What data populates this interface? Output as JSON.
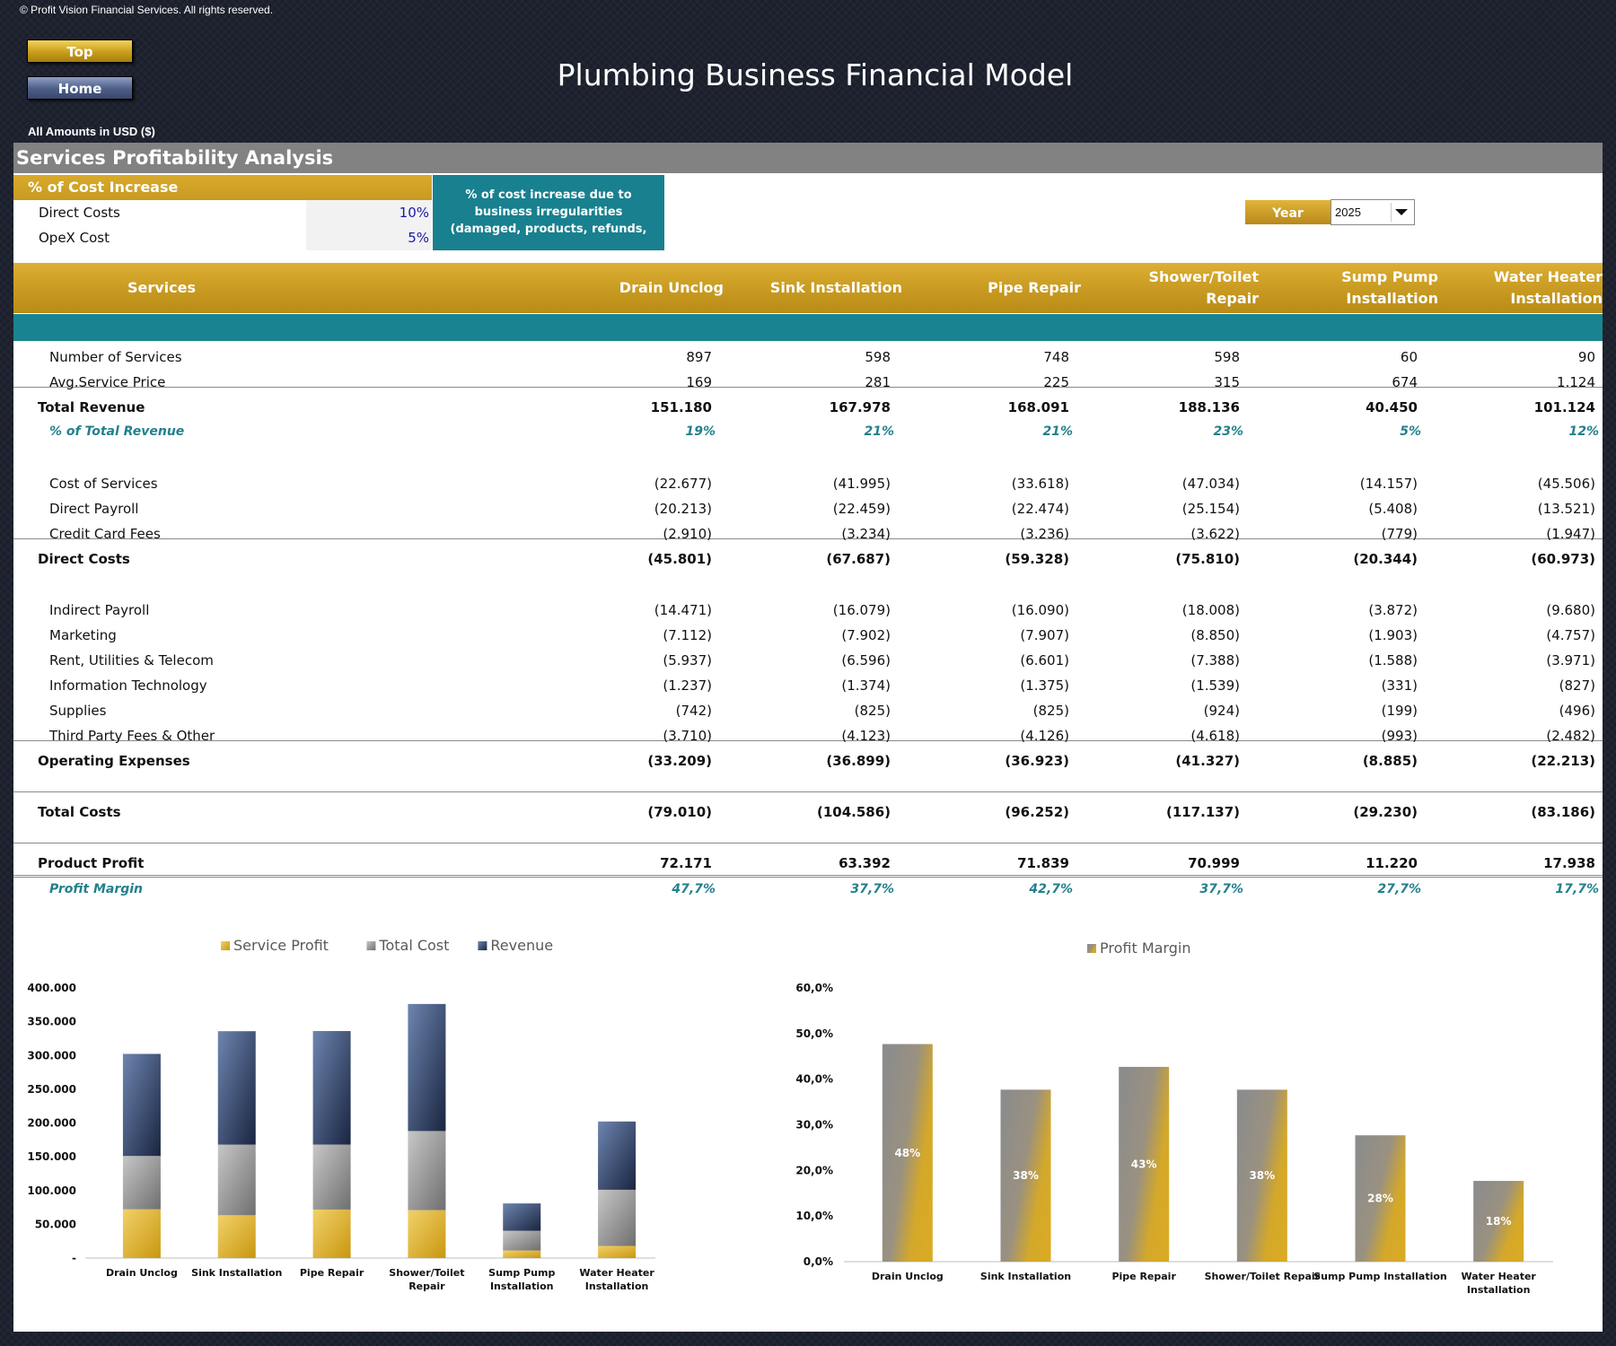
{
  "copyright": "© Profit Vision Financial Services. All rights reserved.",
  "nav": {
    "top_label": "Top",
    "home_label": "Home"
  },
  "title": "Plumbing Business Financial Model",
  "amounts_label": "All Amounts in  USD ($)",
  "section_title": "Services Profitability Analysis",
  "cost_increase": {
    "header": "% of Cost Increase",
    "rows": [
      {
        "label": "Direct Costs",
        "value": "10%"
      },
      {
        "label": "OpeX Cost",
        "value": "5%"
      }
    ],
    "note": "% of cost increase due to business irregularities (damaged, products, refunds,"
  },
  "year": {
    "label": "Year",
    "value": "2025"
  },
  "table": {
    "header_label": "Services",
    "columns": [
      "Drain Unclog",
      "Sink Installation",
      "Pipe Repair",
      "Shower/Toilet Repair",
      "Sump Pump Installation",
      "Water Heater Installation"
    ],
    "column_lines": [
      [
        "Drain Unclog"
      ],
      [
        "Sink Installation"
      ],
      [
        "Pipe Repair"
      ],
      [
        "Shower/Toilet",
        "Repair"
      ],
      [
        "Sump Pump",
        "Installation"
      ],
      [
        "Water Heater",
        "Installation"
      ]
    ],
    "rows": [
      {
        "label": "Number of Services",
        "values": [
          "897",
          "598",
          "748",
          "598",
          "60",
          "90"
        ],
        "style": "normal"
      },
      {
        "label": "Avg.Service Price",
        "values": [
          "169",
          "281",
          "225",
          "315",
          "674",
          "1.124"
        ],
        "style": "normal"
      },
      {
        "label": "Total Revenue",
        "values": [
          "151.180",
          "167.978",
          "168.091",
          "188.136",
          "40.450",
          "101.124"
        ],
        "style": "bold"
      },
      {
        "label": "% of Total Revenue",
        "values": [
          "19%",
          "21%",
          "21%",
          "23%",
          "5%",
          "12%"
        ],
        "style": "pct"
      },
      {
        "label": "Cost of Services",
        "values": [
          "(22.677)",
          "(41.995)",
          "(33.618)",
          "(47.034)",
          "(14.157)",
          "(45.506)"
        ],
        "style": "normal"
      },
      {
        "label": "Direct Payroll",
        "values": [
          "(20.213)",
          "(22.459)",
          "(22.474)",
          "(25.154)",
          "(5.408)",
          "(13.521)"
        ],
        "style": "normal"
      },
      {
        "label": "Credit Card Fees",
        "values": [
          "(2.910)",
          "(3.234)",
          "(3.236)",
          "(3.622)",
          "(779)",
          "(1.947)"
        ],
        "style": "normal"
      },
      {
        "label": "Direct Costs",
        "values": [
          "(45.801)",
          "(67.687)",
          "(59.328)",
          "(75.810)",
          "(20.344)",
          "(60.973)"
        ],
        "style": "bold"
      },
      {
        "label": "Indirect Payroll",
        "values": [
          "(14.471)",
          "(16.079)",
          "(16.090)",
          "(18.008)",
          "(3.872)",
          "(9.680)"
        ],
        "style": "normal"
      },
      {
        "label": "Marketing",
        "values": [
          "(7.112)",
          "(7.902)",
          "(7.907)",
          "(8.850)",
          "(1.903)",
          "(4.757)"
        ],
        "style": "normal"
      },
      {
        "label": "Rent, Utilities & Telecom",
        "values": [
          "(5.937)",
          "(6.596)",
          "(6.601)",
          "(7.388)",
          "(1.588)",
          "(3.971)"
        ],
        "style": "normal"
      },
      {
        "label": "Information Technology",
        "values": [
          "(1.237)",
          "(1.374)",
          "(1.375)",
          "(1.539)",
          "(331)",
          "(827)"
        ],
        "style": "normal"
      },
      {
        "label": "Supplies",
        "values": [
          "(742)",
          "(825)",
          "(825)",
          "(924)",
          "(199)",
          "(496)"
        ],
        "style": "normal"
      },
      {
        "label": "Third Party Fees & Other",
        "values": [
          "(3.710)",
          "(4.123)",
          "(4.126)",
          "(4.618)",
          "(993)",
          "(2.482)"
        ],
        "style": "normal"
      },
      {
        "label": "Operating Expenses",
        "values": [
          "(33.209)",
          "(36.899)",
          "(36.923)",
          "(41.327)",
          "(8.885)",
          "(22.213)"
        ],
        "style": "bold"
      },
      {
        "label": "Total Costs",
        "values": [
          "(79.010)",
          "(104.586)",
          "(96.252)",
          "(117.137)",
          "(29.230)",
          "(83.186)"
        ],
        "style": "bold"
      },
      {
        "label": "Product Profit",
        "values": [
          "72.171",
          "63.392",
          "71.839",
          "70.999",
          "11.220",
          "17.938"
        ],
        "style": "bold"
      },
      {
        "label": "Profit Margin",
        "values": [
          "47,7%",
          "37,7%",
          "42,7%",
          "37,7%",
          "27,7%",
          "17,7%"
        ],
        "style": "pct"
      }
    ]
  },
  "colors": {
    "gold": "#d4a82a",
    "gray": "#8c8c8c",
    "navy": "#1f2d4a",
    "teal": "#1a8391"
  },
  "chart_data": [
    {
      "type": "bar",
      "stacked": true,
      "categories": [
        "Drain Unclog",
        "Sink Installation",
        "Pipe Repair",
        "Shower/Toilet Repair",
        "Sump Pump Installation",
        "Water Heater Installation"
      ],
      "category_lines": [
        [
          "Drain Unclog"
        ],
        [
          "Sink Installation"
        ],
        [
          "Pipe Repair"
        ],
        [
          "Shower/Toilet",
          "Repair"
        ],
        [
          "Sump Pump",
          "Installation"
        ],
        [
          "Water Heater",
          "Installation"
        ]
      ],
      "series": [
        {
          "name": "Service Profit",
          "values": [
            72171,
            63392,
            71839,
            70999,
            11220,
            17938
          ],
          "color": "#d4a82a"
        },
        {
          "name": "Total Cost",
          "values": [
            79010,
            104586,
            96252,
            117137,
            29230,
            83186
          ],
          "color": "#8c8c8c"
        },
        {
          "name": "Revenue",
          "values": [
            151180,
            167978,
            168091,
            188136,
            40450,
            101124
          ],
          "color": "#1f2d4a"
        }
      ],
      "ylim": [
        0,
        400000
      ],
      "yticks": [
        "-",
        "50.000",
        "100.000",
        "150.000",
        "200.000",
        "250.000",
        "300.000",
        "350.000",
        "400.000"
      ],
      "legend": "top-center"
    },
    {
      "type": "bar",
      "categories": [
        "Drain Unclog",
        "Sink Installation",
        "Pipe Repair",
        "Shower/Toilet Repair",
        "Sump Pump Installation",
        "Water Heater Installation"
      ],
      "category_lines": [
        [
          "Drain Unclog"
        ],
        [
          "Sink Installation"
        ],
        [
          "Pipe Repair"
        ],
        [
          "Shower/Toilet Repair"
        ],
        [
          "Sump Pump Installation"
        ],
        [
          "Water Heater",
          "Installation"
        ]
      ],
      "series": [
        {
          "name": "Profit Margin",
          "values": [
            47.7,
            37.7,
            42.7,
            37.7,
            27.7,
            17.7
          ],
          "labels": [
            "48%",
            "38%",
            "43%",
            "38%",
            "28%",
            "18%"
          ]
        }
      ],
      "ylim": [
        0,
        60
      ],
      "yticks": [
        "0,0%",
        "10,0%",
        "20,0%",
        "30,0%",
        "40,0%",
        "50,0%",
        "60,0%"
      ],
      "legend": "top-center"
    }
  ]
}
